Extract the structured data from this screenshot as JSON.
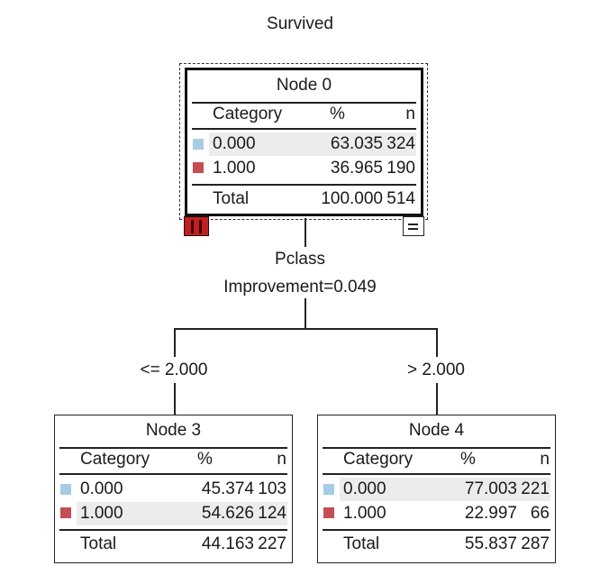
{
  "dependent_variable": "Survived",
  "colors": {
    "cat_0": "#a6cde3",
    "cat_1": "#c44e52"
  },
  "nodes": {
    "node0": {
      "title": "Node 0",
      "header": {
        "category": "Category",
        "pct": "%",
        "n": "n"
      },
      "rows": [
        {
          "category": "0.000",
          "pct": "63.035",
          "n": "324"
        },
        {
          "category": "1.000",
          "pct": "36.965",
          "n": "190"
        }
      ],
      "total": {
        "label": "Total",
        "pct": "100.000",
        "n": "514"
      }
    },
    "node3": {
      "title": "Node 3",
      "header": {
        "category": "Category",
        "pct": "%",
        "n": "n"
      },
      "rows": [
        {
          "category": "0.000",
          "pct": "45.374",
          "n": "103"
        },
        {
          "category": "1.000",
          "pct": "54.626",
          "n": "124"
        }
      ],
      "total": {
        "label": "Total",
        "pct": "44.163",
        "n": "227"
      }
    },
    "node4": {
      "title": "Node 4",
      "header": {
        "category": "Category",
        "pct": "%",
        "n": "n"
      },
      "rows": [
        {
          "category": "0.000",
          "pct": "77.003",
          "n": "221"
        },
        {
          "category": "1.000",
          "pct": "22.997",
          "n": "66"
        }
      ],
      "total": {
        "label": "Total",
        "pct": "55.837",
        "n": "287"
      }
    }
  },
  "split": {
    "variable": "Pclass",
    "improvement": "Improvement=0.049",
    "left_branch": "<= 2.000",
    "right_branch": "> 2.000"
  },
  "icons": {
    "expand": "expand-icon",
    "collapse": "collapse-icon"
  }
}
